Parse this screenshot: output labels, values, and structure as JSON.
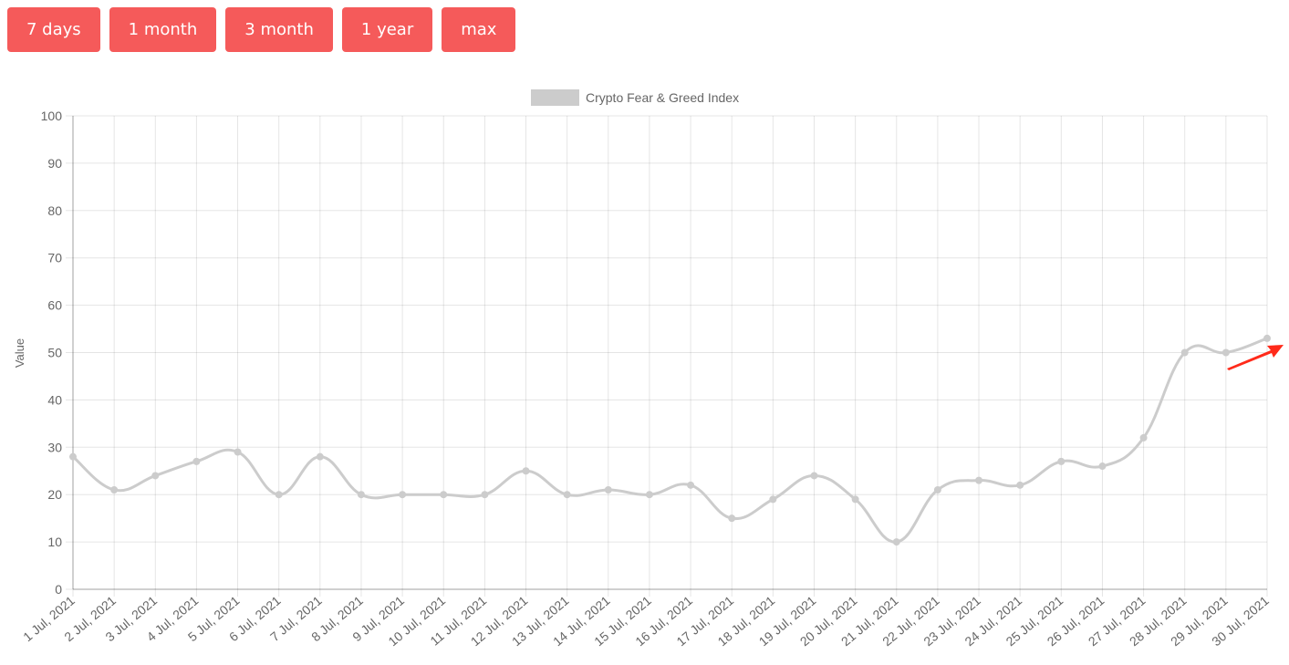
{
  "buttons": [
    "7 days",
    "1 month",
    "3 month",
    "1 year",
    "max"
  ],
  "chart_data": {
    "type": "line",
    "y_label": "Value",
    "categories": [
      "1 Jul, 2021",
      "2 Jul, 2021",
      "3 Jul, 2021",
      "4 Jul, 2021",
      "5 Jul, 2021",
      "6 Jul, 2021",
      "7 Jul, 2021",
      "8 Jul, 2021",
      "9 Jul, 2021",
      "10 Jul, 2021",
      "11 Jul, 2021",
      "12 Jul, 2021",
      "13 Jul, 2021",
      "14 Jul, 2021",
      "15 Jul, 2021",
      "16 Jul, 2021",
      "17 Jul, 2021",
      "18 Jul, 2021",
      "19 Jul, 2021",
      "20 Jul, 2021",
      "21 Jul, 2021",
      "22 Jul, 2021",
      "23 Jul, 2021",
      "24 Jul, 2021",
      "25 Jul, 2021",
      "26 Jul, 2021",
      "27 Jul, 2021",
      "28 Jul, 2021",
      "29 Jul, 2021",
      "30 Jul, 2021"
    ],
    "series": [
      {
        "name": "Crypto Fear & Greed Index",
        "color": "#cccccc",
        "values": [
          28,
          21,
          24,
          27,
          29,
          20,
          28,
          20,
          20,
          20,
          20,
          25,
          20,
          21,
          20,
          22,
          15,
          19,
          24,
          19,
          10,
          21,
          23,
          22,
          27,
          26,
          32,
          50,
          50,
          53
        ]
      }
    ],
    "ylim": [
      0,
      100
    ],
    "yticks": [
      0,
      10,
      20,
      30,
      40,
      50,
      60,
      70,
      80,
      90,
      100
    ],
    "grid": true,
    "legend": "top"
  }
}
